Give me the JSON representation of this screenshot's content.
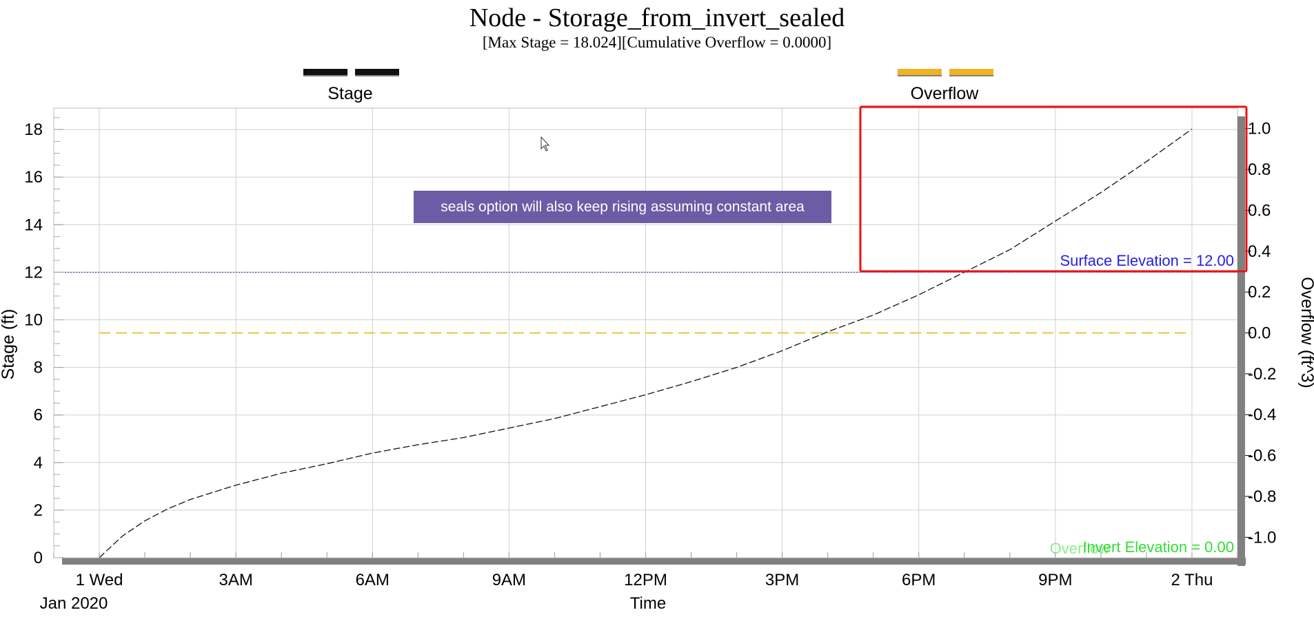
{
  "title": "Node - Storage_from_invert_sealed",
  "subtitle": "[Max  Stage = 18.024][Cumulative Overflow = 0.0000]",
  "legend": [
    {
      "label": "Stage",
      "color": "#111111"
    },
    {
      "label": "Overflow",
      "color": "#f0b323"
    }
  ],
  "annotation": "seals option will also keep rising assuming constant area",
  "reference_lines": {
    "surface": {
      "label": "Surface Elevation = 12.00",
      "color": "#2222dd"
    },
    "invert": {
      "label": "Invert Elevation = 0.00",
      "color": "#33dd33",
      "overlap_label": "Overflow"
    }
  },
  "chart_data": {
    "type": "line",
    "title": "Node - Storage_from_invert_sealed",
    "subtitle": "[Max  Stage = 18.024][Cumulative Overflow = 0.0000]",
    "xlabel": "Time",
    "ylabel": "Stage (ft)",
    "y2label": "Overflow (ft^3)",
    "x_ticks": [
      "1 Wed",
      "3AM",
      "6AM",
      "9AM",
      "12PM",
      "3PM",
      "6PM",
      "9PM",
      "2 Thu"
    ],
    "x_sublabel": "Jan 2020",
    "x_range_hours": [
      -1,
      25
    ],
    "ylim": [
      0,
      18.9
    ],
    "y_ticks": [
      0,
      2,
      4,
      6,
      8,
      10,
      12,
      14,
      16,
      18
    ],
    "y2lim": [
      -1.1,
      1.1
    ],
    "y2_ticks": [
      "1.0",
      "0.8",
      "0.6",
      "0.4",
      "0.2",
      "0.0",
      "-0.2",
      "-0.4",
      "-0.6",
      "-0.8",
      "-1.0"
    ],
    "y2_tick_values": [
      1.0,
      0.8,
      0.6,
      0.4,
      0.2,
      0.0,
      -0.2,
      -0.4,
      -0.6,
      -0.8,
      -1.0
    ],
    "grid": true,
    "series": [
      {
        "name": "Stage",
        "axis": "left",
        "color": "#111111",
        "dash": "dashed",
        "x": [
          0,
          0.5,
          1,
          1.5,
          2,
          3,
          4,
          5,
          6,
          7,
          8,
          9,
          10,
          11,
          12,
          13,
          14,
          15,
          16,
          17,
          18,
          19,
          20,
          21,
          22,
          23,
          24
        ],
        "y": [
          0,
          0.9,
          1.55,
          2.05,
          2.45,
          3.05,
          3.55,
          3.95,
          4.4,
          4.75,
          5.05,
          5.45,
          5.85,
          6.35,
          6.85,
          7.4,
          8.0,
          8.7,
          9.5,
          10.2,
          11.05,
          12.0,
          12.95,
          14.15,
          15.35,
          16.65,
          18.02
        ]
      },
      {
        "name": "Overflow",
        "axis": "right",
        "color": "#f0c040",
        "dash": "dashed",
        "x": [
          0,
          24
        ],
        "y": [
          0,
          0
        ]
      }
    ],
    "hlines": [
      {
        "label": "Surface Elevation = 12.00",
        "value": 12,
        "color": "#2222aa",
        "style": "dotted"
      },
      {
        "label": "Invert Elevation = 0.00",
        "value": 0,
        "color": "#33dd33"
      }
    ]
  },
  "highlight_box_color": "#ee1111",
  "axis_color": "#808080"
}
